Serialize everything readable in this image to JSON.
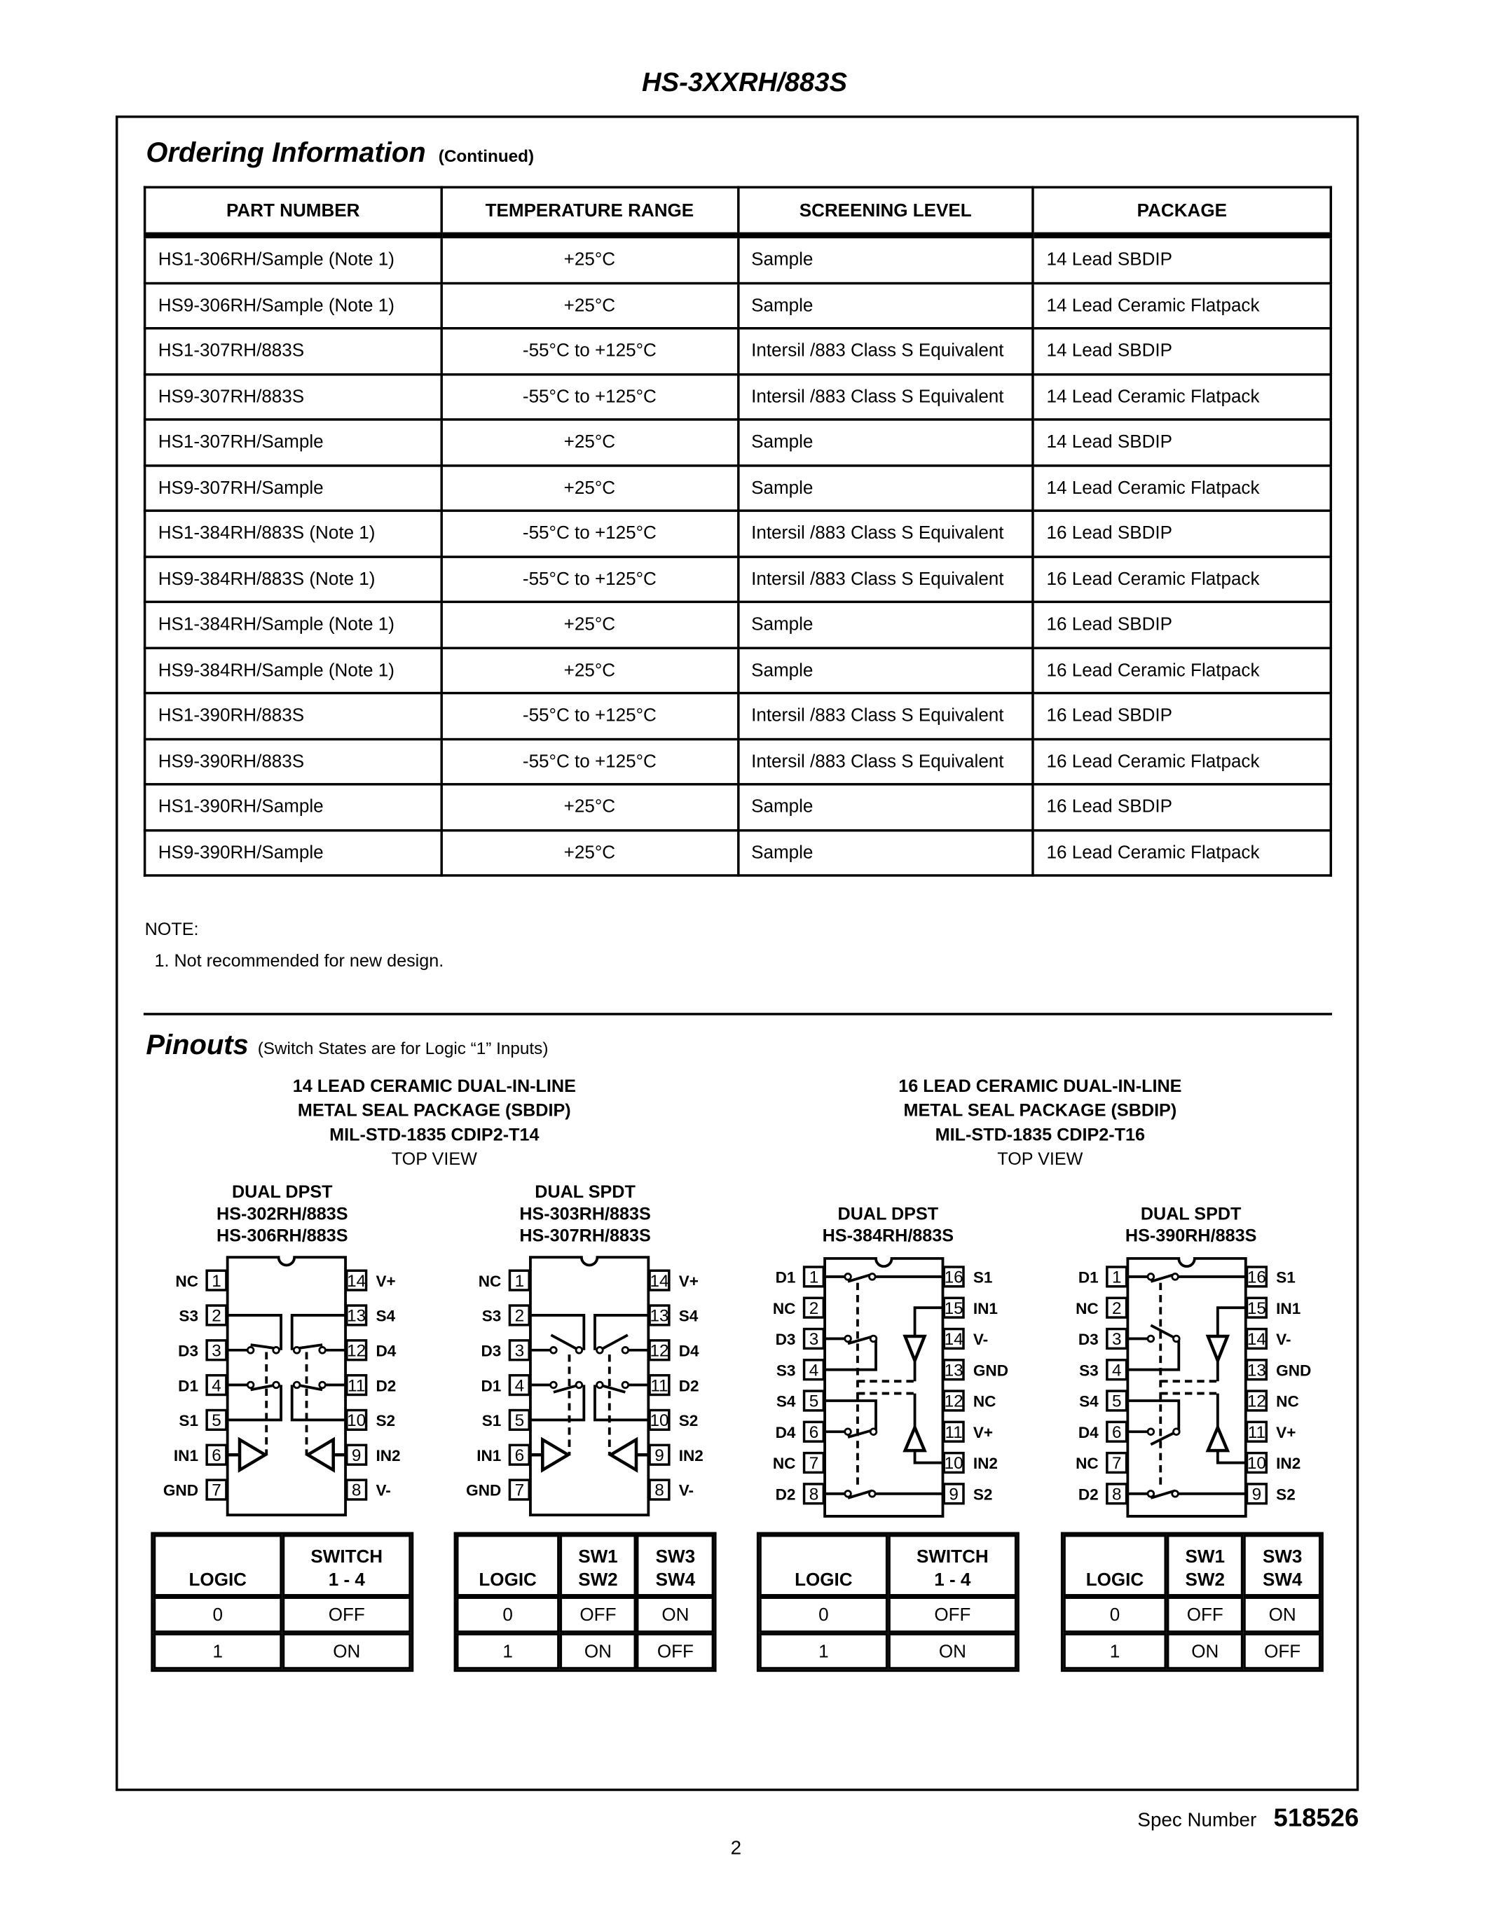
{
  "header": {
    "title": "HS-3XXRH/883S"
  },
  "ordering": {
    "title": "Ordering Information",
    "subtitle": "(Continued)",
    "columns": [
      "PART NUMBER",
      "TEMPERATURE RANGE",
      "SCREENING LEVEL",
      "PACKAGE"
    ],
    "rows": [
      [
        "HS1-306RH/Sample (Note 1)",
        "+25°C",
        "Sample",
        "14 Lead SBDIP"
      ],
      [
        "HS9-306RH/Sample (Note 1)",
        "+25°C",
        "Sample",
        "14 Lead Ceramic Flatpack"
      ],
      [
        "HS1-307RH/883S",
        "-55°C to +125°C",
        "Intersil /883 Class S Equivalent",
        "14 Lead SBDIP"
      ],
      [
        "HS9-307RH/883S",
        "-55°C to +125°C",
        "Intersil /883 Class S Equivalent",
        "14 Lead Ceramic Flatpack"
      ],
      [
        "HS1-307RH/Sample",
        "+25°C",
        "Sample",
        "14 Lead SBDIP"
      ],
      [
        "HS9-307RH/Sample",
        "+25°C",
        "Sample",
        "14 Lead Ceramic Flatpack"
      ],
      [
        "HS1-384RH/883S (Note 1)",
        "-55°C to +125°C",
        "Intersil /883 Class S Equivalent",
        "16 Lead SBDIP"
      ],
      [
        "HS9-384RH/883S (Note 1)",
        "-55°C to +125°C",
        "Intersil /883 Class S Equivalent",
        "16 Lead Ceramic Flatpack"
      ],
      [
        "HS1-384RH/Sample (Note 1)",
        "+25°C",
        "Sample",
        "16 Lead SBDIP"
      ],
      [
        "HS9-384RH/Sample (Note 1)",
        "+25°C",
        "Sample",
        "16 Lead Ceramic Flatpack"
      ],
      [
        "HS1-390RH/883S",
        "-55°C to +125°C",
        "Intersil /883 Class S Equivalent",
        "16 Lead SBDIP"
      ],
      [
        "HS9-390RH/883S",
        "-55°C to +125°C",
        "Intersil /883 Class S Equivalent",
        "16 Lead Ceramic Flatpack"
      ],
      [
        "HS1-390RH/Sample",
        "+25°C",
        "Sample",
        "16 Lead SBDIP"
      ],
      [
        "HS9-390RH/Sample",
        "+25°C",
        "Sample",
        "16 Lead Ceramic Flatpack"
      ]
    ],
    "note_heading": "NOTE:",
    "note_1": "1.  Not recommended for new design."
  },
  "pinouts": {
    "title": "Pinouts",
    "subtitle": "(Switch States are for Logic “1” Inputs)",
    "pkg14": {
      "line1": "14 LEAD CERAMIC DUAL-IN-LINE",
      "line2": "METAL SEAL PACKAGE (SBDIP)",
      "line3": "MIL-STD-1835 CDIP2-T14",
      "line4": "TOP VIEW"
    },
    "pkg16": {
      "line1": "16 LEAD CERAMIC DUAL-IN-LINE",
      "line2": "METAL SEAL PACKAGE (SBDIP)",
      "line3": "MIL-STD-1835 CDIP2-T16",
      "line4": "TOP VIEW"
    },
    "devices": [
      {
        "type": "DUAL DPST",
        "part1": "HS-302RH/883S",
        "part2": "HS-306RH/883S",
        "left": [
          [
            "1",
            "NC"
          ],
          [
            "2",
            "S3"
          ],
          [
            "3",
            "D3"
          ],
          [
            "4",
            "D1"
          ],
          [
            "5",
            "S1"
          ],
          [
            "6",
            "IN1"
          ],
          [
            "7",
            "GND"
          ]
        ],
        "right": [
          [
            "14",
            "V+"
          ],
          [
            "13",
            "S4"
          ],
          [
            "12",
            "D4"
          ],
          [
            "11",
            "D2"
          ],
          [
            "10",
            "S2"
          ],
          [
            "9",
            "IN2"
          ],
          [
            "8",
            "V-"
          ]
        ],
        "logic": {
          "head": [
            "LOGIC",
            "SWITCH",
            "1 - 4"
          ],
          "rows": [
            [
              "0",
              "OFF"
            ],
            [
              "1",
              "ON"
            ]
          ]
        }
      },
      {
        "type": "DUAL SPDT",
        "part1": "HS-303RH/883S",
        "part2": "HS-307RH/883S",
        "left": [
          [
            "1",
            "NC"
          ],
          [
            "2",
            "S3"
          ],
          [
            "3",
            "D3"
          ],
          [
            "4",
            "D1"
          ],
          [
            "5",
            "S1"
          ],
          [
            "6",
            "IN1"
          ],
          [
            "7",
            "GND"
          ]
        ],
        "right": [
          [
            "14",
            "V+"
          ],
          [
            "13",
            "S4"
          ],
          [
            "12",
            "D4"
          ],
          [
            "11",
            "D2"
          ],
          [
            "10",
            "S2"
          ],
          [
            "9",
            "IN2"
          ],
          [
            "8",
            "V-"
          ]
        ],
        "logic": {
          "head": [
            "LOGIC",
            "SW1",
            "SW2",
            "SW3",
            "SW4"
          ],
          "rows": [
            [
              "0",
              "OFF",
              "ON"
            ],
            [
              "1",
              "ON",
              "OFF"
            ]
          ]
        }
      },
      {
        "type": "DUAL DPST",
        "part1": "HS-384RH/883S",
        "left": [
          [
            "1",
            "D1"
          ],
          [
            "2",
            "NC"
          ],
          [
            "3",
            "D3"
          ],
          [
            "4",
            "S3"
          ],
          [
            "5",
            "S4"
          ],
          [
            "6",
            "D4"
          ],
          [
            "7",
            "NC"
          ],
          [
            "8",
            "D2"
          ]
        ],
        "right": [
          [
            "16",
            "S1"
          ],
          [
            "15",
            "IN1"
          ],
          [
            "14",
            "V-"
          ],
          [
            "13",
            "GND"
          ],
          [
            "12",
            "NC"
          ],
          [
            "11",
            "V+"
          ],
          [
            "10",
            "IN2"
          ],
          [
            "9",
            "S2"
          ]
        ],
        "logic": {
          "head": [
            "LOGIC",
            "SWITCH",
            "1 - 4"
          ],
          "rows": [
            [
              "0",
              "OFF"
            ],
            [
              "1",
              "ON"
            ]
          ]
        }
      },
      {
        "type": "DUAL SPDT",
        "part1": "HS-390RH/883S",
        "left": [
          [
            "1",
            "D1"
          ],
          [
            "2",
            "NC"
          ],
          [
            "3",
            "D3"
          ],
          [
            "4",
            "S3"
          ],
          [
            "5",
            "S4"
          ],
          [
            "6",
            "D4"
          ],
          [
            "7",
            "NC"
          ],
          [
            "8",
            "D2"
          ]
        ],
        "right": [
          [
            "16",
            "S1"
          ],
          [
            "15",
            "IN1"
          ],
          [
            "14",
            "V-"
          ],
          [
            "13",
            "GND"
          ],
          [
            "12",
            "NC"
          ],
          [
            "11",
            "V+"
          ],
          [
            "10",
            "IN2"
          ],
          [
            "9",
            "S2"
          ]
        ],
        "logic": {
          "head": [
            "LOGIC",
            "SW1",
            "SW2",
            "SW3",
            "SW4"
          ],
          "rows": [
            [
              "0",
              "OFF",
              "ON"
            ],
            [
              "1",
              "ON",
              "OFF"
            ]
          ]
        }
      }
    ]
  },
  "footer": {
    "spec_label": "Spec Number",
    "spec_number": "518526",
    "page": "2"
  }
}
